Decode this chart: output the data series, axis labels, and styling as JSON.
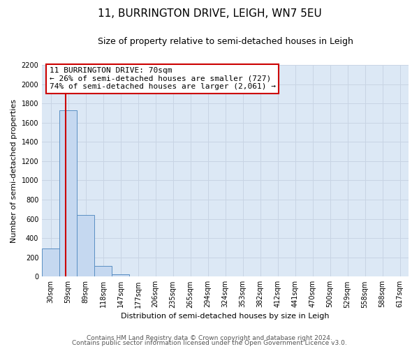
{
  "title": "11, BURRINGTON DRIVE, LEIGH, WN7 5EU",
  "subtitle": "Size of property relative to semi-detached houses in Leigh",
  "xlabel": "Distribution of semi-detached houses by size in Leigh",
  "ylabel": "Number of semi-detached properties",
  "bar_categories": [
    "30sqm",
    "59sqm",
    "89sqm",
    "118sqm",
    "147sqm",
    "177sqm",
    "206sqm",
    "235sqm",
    "265sqm",
    "294sqm",
    "324sqm",
    "353sqm",
    "382sqm",
    "412sqm",
    "441sqm",
    "470sqm",
    "500sqm",
    "529sqm",
    "558sqm",
    "588sqm",
    "617sqm"
  ],
  "bar_values": [
    290,
    1730,
    640,
    110,
    25,
    0,
    0,
    0,
    0,
    0,
    0,
    0,
    0,
    0,
    0,
    0,
    0,
    0,
    0,
    0,
    0
  ],
  "bar_color": "#c5d8f0",
  "bar_edge_color": "#5a8fc3",
  "ylim": [
    0,
    2200
  ],
  "yticks": [
    0,
    200,
    400,
    600,
    800,
    1000,
    1200,
    1400,
    1600,
    1800,
    2000,
    2200
  ],
  "property_line_color": "#cc0000",
  "annotation_title": "11 BURRINGTON DRIVE: 70sqm",
  "annotation_line1": "← 26% of semi-detached houses are smaller (727)",
  "annotation_line2": "74% of semi-detached houses are larger (2,061) →",
  "annotation_box_color": "#ffffff",
  "annotation_box_edge": "#cc0000",
  "grid_color": "#c8d4e4",
  "background_color": "#dce8f5",
  "footer1": "Contains HM Land Registry data © Crown copyright and database right 2024.",
  "footer2": "Contains public sector information licensed under the Open Government Licence v3.0.",
  "title_fontsize": 11,
  "subtitle_fontsize": 9,
  "axis_label_fontsize": 8,
  "tick_fontsize": 7,
  "annotation_fontsize": 8,
  "footer_fontsize": 6.5
}
